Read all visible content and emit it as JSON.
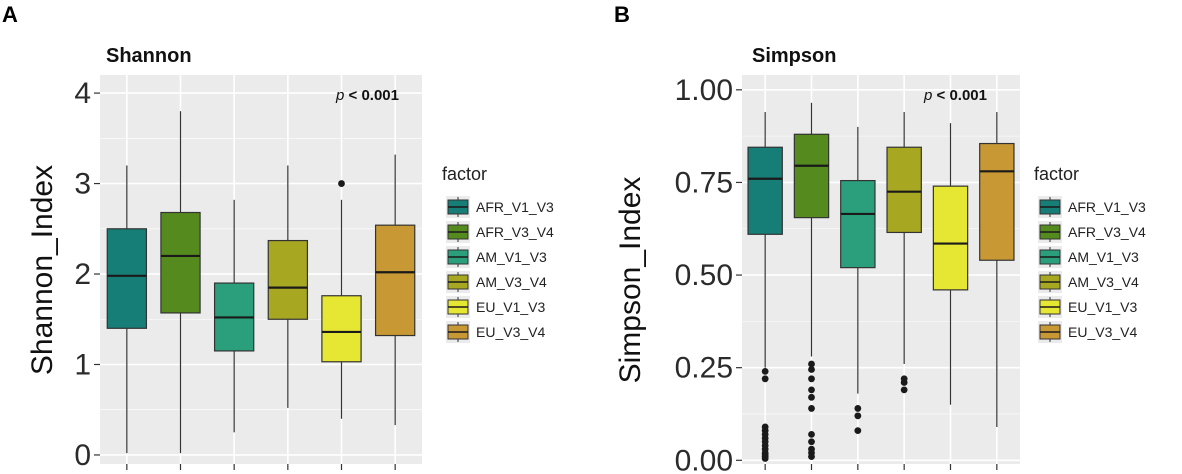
{
  "panels": [
    {
      "letter": "A"
    },
    {
      "letter": "B"
    }
  ],
  "colors": {
    "panel_bg": "#ebebeb",
    "grid": "#ffffff",
    "whisker": "#333333",
    "median": "#1a1a1a",
    "outlier": "#1a1a1a"
  },
  "chart_data": [
    {
      "type": "box",
      "title": "Shannon",
      "xlabel": "",
      "ylabel": "Shannon_Index",
      "ylim": [
        -0.1,
        4.2
      ],
      "yticks": [
        0,
        1,
        2,
        3,
        4
      ],
      "ytick_labels": [
        "0",
        "1",
        "2",
        "3",
        "4"
      ],
      "annotation": {
        "p": "p",
        "text": " < 0.001"
      },
      "legend_title": "factor",
      "series": [
        {
          "name": "AFR_V1_V3",
          "color": "#177d77",
          "min": 0.02,
          "q1": 1.4,
          "median": 1.98,
          "q3": 2.5,
          "max": 3.2,
          "outliers": []
        },
        {
          "name": "AFR_V3_V4",
          "color": "#548a1e",
          "min": 0.02,
          "q1": 1.57,
          "median": 2.2,
          "q3": 2.68,
          "max": 3.8,
          "outliers": []
        },
        {
          "name": "AM_V1_V3",
          "color": "#2b9f7c",
          "min": 0.25,
          "q1": 1.15,
          "median": 1.52,
          "q3": 1.9,
          "max": 2.82,
          "outliers": []
        },
        {
          "name": "AM_V3_V4",
          "color": "#a8a722",
          "min": 0.52,
          "q1": 1.5,
          "median": 1.85,
          "q3": 2.37,
          "max": 3.2,
          "outliers": []
        },
        {
          "name": "EU_V1_V3",
          "color": "#e6e732",
          "min": 0.4,
          "q1": 1.03,
          "median": 1.36,
          "q3": 1.76,
          "max": 2.82,
          "outliers": [
            3.0
          ]
        },
        {
          "name": "EU_V3_V4",
          "color": "#c79833",
          "min": 0.33,
          "q1": 1.32,
          "median": 2.02,
          "q3": 2.54,
          "max": 3.32,
          "outliers": []
        }
      ]
    },
    {
      "type": "box",
      "title": "Simpson",
      "xlabel": "",
      "ylabel": "Simpson_Index",
      "ylim": [
        -0.01,
        1.04
      ],
      "yticks": [
        0,
        0.25,
        0.5,
        0.75,
        1.0
      ],
      "ytick_labels": [
        "0.00",
        "0.25",
        "0.50",
        "0.75",
        "1.00"
      ],
      "annotation": {
        "p": "p",
        "text": " < 0.001"
      },
      "legend_title": "factor",
      "series": [
        {
          "name": "AFR_V1_V3",
          "color": "#177d77",
          "min": 0.25,
          "q1": 0.61,
          "median": 0.76,
          "q3": 0.845,
          "max": 0.94,
          "outliers": [
            0.24,
            0.22,
            0.09,
            0.08,
            0.07,
            0.06,
            0.05,
            0.04,
            0.03,
            0.02,
            0.015,
            0.01,
            0.005
          ]
        },
        {
          "name": "AFR_V3_V4",
          "color": "#548a1e",
          "min": 0.28,
          "q1": 0.655,
          "median": 0.795,
          "q3": 0.88,
          "max": 0.965,
          "outliers": [
            0.26,
            0.245,
            0.22,
            0.19,
            0.17,
            0.14,
            0.07,
            0.05,
            0.03,
            0.02,
            0.01
          ]
        },
        {
          "name": "AM_V1_V3",
          "color": "#2b9f7c",
          "min": 0.18,
          "q1": 0.52,
          "median": 0.665,
          "q3": 0.755,
          "max": 0.9,
          "outliers": [
            0.14,
            0.12,
            0.08
          ]
        },
        {
          "name": "AM_V3_V4",
          "color": "#a8a722",
          "min": 0.26,
          "q1": 0.615,
          "median": 0.725,
          "q3": 0.845,
          "max": 0.94,
          "outliers": [
            0.22,
            0.21,
            0.19
          ]
        },
        {
          "name": "EU_V1_V3",
          "color": "#e6e732",
          "min": 0.15,
          "q1": 0.46,
          "median": 0.585,
          "q3": 0.74,
          "max": 0.91,
          "outliers": []
        },
        {
          "name": "EU_V3_V4",
          "color": "#c79833",
          "min": 0.09,
          "q1": 0.54,
          "median": 0.78,
          "q3": 0.855,
          "max": 0.94,
          "outliers": []
        }
      ]
    }
  ]
}
